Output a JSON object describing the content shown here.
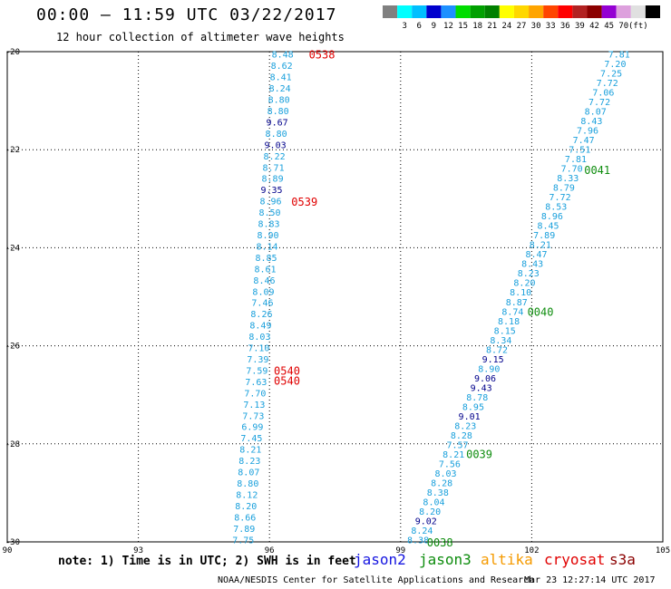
{
  "title": "00:00 — 11:59 UTC 03/22/2017",
  "subtitle": "12 hour collection of altimeter wave heights",
  "notes": "note: 1) Time is in UTC; 2) SWH is in feet",
  "credit": "NOAA/NESDIS Center for Satellite Applications and Research",
  "timestamp": "Mar 23 12:27:14 UTC 2017",
  "satellites": [
    {
      "name": "jason2",
      "color": "#1515e0"
    },
    {
      "name": "jason3",
      "color": "#0d8c0d"
    },
    {
      "name": "altika",
      "color": "#f59a00"
    },
    {
      "name": "cryosat",
      "color": "#e00000"
    },
    {
      "name": "s3a",
      "color": "#8b0000"
    }
  ],
  "chart_data": {
    "type": "scatter",
    "title": "00:00 — 11:59 UTC 03/22/2017",
    "subtitle": "12 hour collection of altimeter wave heights",
    "xlim": [
      90,
      105
    ],
    "ylim": [
      -30,
      -20
    ],
    "x_ticks": [
      "90",
      "93",
      "96",
      "99",
      "102",
      "105"
    ],
    "x_tick_values": [
      90,
      93,
      96,
      99,
      102,
      105
    ],
    "y_ticks": [
      "-20",
      "-22",
      "-24",
      "-26",
      "-28",
      "-30"
    ],
    "y_tick_values": [
      -20,
      -22,
      -24,
      -26,
      -28,
      -30
    ],
    "grid": "dotted",
    "colorbar": {
      "unit": "(ft)",
      "colors": [
        "#808080",
        "#00ffff",
        "#00bfff",
        "#0000cd",
        "#1e90ff",
        "#00dd00",
        "#00a000",
        "#008000",
        "#ffff00",
        "#ffd700",
        "#ffa500",
        "#ff4500",
        "#ff0000",
        "#b22222",
        "#8b0000",
        "#9400d3",
        "#dda0dd",
        "#e0e0e0",
        "#000000"
      ],
      "labels": [
        "3",
        "6",
        "9",
        "12",
        "15",
        "18",
        "21",
        "24",
        "27",
        "30",
        "33",
        "36",
        "39",
        "42",
        "45",
        "70"
      ]
    },
    "tracks": [
      {
        "start": [
          96.3,
          -20.05
        ],
        "end": [
          95.4,
          -29.95
        ],
        "values": [
          "8.48",
          "8.62",
          "8.41",
          "8.24",
          "8.80",
          "8.80",
          "9.67",
          "8.80",
          "9.03",
          "8.22",
          "8.71",
          "8.89",
          "9.35",
          "8.96",
          "8.50",
          "8.83",
          "8.90",
          "8.14",
          "8.85",
          "8.61",
          "8.46",
          "8.09",
          "7.46",
          "8.26",
          "8.49",
          "8.03",
          "7.10",
          "7.39",
          "7.59",
          "7.63",
          "7.70",
          "7.13",
          "7.73",
          "6.99",
          "7.45",
          "8.21",
          "8.23",
          "8.07",
          "8.80",
          "8.12",
          "8.20",
          "8.66",
          "7.89",
          "7.75"
        ]
      },
      {
        "start": [
          104.0,
          -20.05
        ],
        "end": [
          99.4,
          -29.95
        ],
        "values": [
          "7.81",
          "7.20",
          "7.25",
          "7.72",
          "7.06",
          "7.72",
          "8.07",
          "8.43",
          "7.96",
          "7.47",
          "7.51",
          "7.81",
          "7.70",
          "8.33",
          "8.79",
          "7.72",
          "8.53",
          "8.96",
          "8.45",
          "7.89",
          "8.21",
          "8.47",
          "8.43",
          "8.23",
          "8.20",
          "8.10",
          "8.87",
          "8.74",
          "8.18",
          "8.15",
          "8.34",
          "8.72",
          "9.15",
          "8.90",
          "9.06",
          "9.43",
          "8.78",
          "8.95",
          "9.01",
          "8.23",
          "8.28",
          "7.57",
          "8.21",
          "7.56",
          "8.03",
          "8.28",
          "8.38",
          "8.04",
          "8.20",
          "9.02",
          "8.24",
          "8.38"
        ]
      }
    ],
    "pass_labels": [
      {
        "text": "0538",
        "x": 97.2,
        "y": -20.05,
        "satellite": "cryosat"
      },
      {
        "text": "0539",
        "x": 96.8,
        "y": -23.05,
        "satellite": "cryosat"
      },
      {
        "text": "0540",
        "x": 96.4,
        "y": -26.5,
        "satellite": "cryosat"
      },
      {
        "text": "0540",
        "x": 96.4,
        "y": -26.7,
        "satellite": "cryosat"
      },
      {
        "text": "0041",
        "x": 103.5,
        "y": -22.4,
        "satellite": "jason3"
      },
      {
        "text": "0040",
        "x": 102.2,
        "y": -25.3,
        "satellite": "jason3"
      },
      {
        "text": "0039",
        "x": 100.8,
        "y": -28.2,
        "satellite": "jason3"
      },
      {
        "text": "0038",
        "x": 99.9,
        "y": -30.0,
        "satellite": "jason3"
      }
    ]
  }
}
